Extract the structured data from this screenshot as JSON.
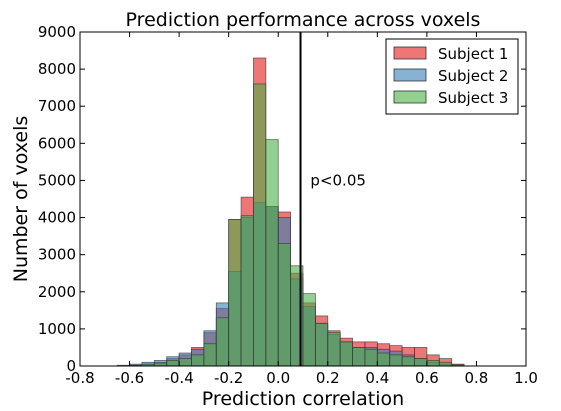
{
  "chart_data": {
    "type": "histogram",
    "title": "Prediction performance across voxels",
    "xlabel": "Prediction correlation",
    "ylabel": "Number of voxels",
    "xlim": [
      -0.8,
      1.0
    ],
    "ylim": [
      0,
      9000
    ],
    "xticks": [
      "-0.8",
      "-0.6",
      "-0.4",
      "-0.2",
      "0.0",
      "0.2",
      "0.4",
      "0.6",
      "0.8",
      "1.0"
    ],
    "xtick_values": [
      -0.8,
      -0.6,
      -0.4,
      -0.2,
      0.0,
      0.2,
      0.4,
      0.6,
      0.8,
      1.0
    ],
    "yticks": [
      "0",
      "1000",
      "2000",
      "3000",
      "4000",
      "5000",
      "6000",
      "7000",
      "8000",
      "9000"
    ],
    "ytick_values": [
      0,
      1000,
      2000,
      3000,
      4000,
      5000,
      6000,
      7000,
      8000,
      9000
    ],
    "grid": false,
    "legend_position": "top-right",
    "series": [
      {
        "name": "Subject 1",
        "color": "#e41a1c",
        "edges": [
          -0.6,
          -0.55,
          -0.5,
          -0.45,
          -0.4,
          -0.35,
          -0.3,
          -0.25,
          -0.2,
          -0.15,
          -0.1,
          -0.05,
          0.0,
          0.05,
          0.1,
          0.15,
          0.2,
          0.25,
          0.3,
          0.35,
          0.4,
          0.45,
          0.5,
          0.55,
          0.6,
          0.65,
          0.7,
          0.75
        ],
        "counts": [
          20,
          50,
          100,
          200,
          300,
          500,
          900,
          1550,
          3950,
          4550,
          8300,
          4300,
          4150,
          2500,
          1700,
          1350,
          950,
          750,
          650,
          650,
          600,
          550,
          500,
          500,
          300,
          200,
          50
        ]
      },
      {
        "name": "Subject 2",
        "color": "#377eb8",
        "edges": [
          -0.65,
          -0.6,
          -0.55,
          -0.5,
          -0.45,
          -0.4,
          -0.35,
          -0.3,
          -0.25,
          -0.2,
          -0.15,
          -0.1,
          -0.05,
          0.0,
          0.05,
          0.1,
          0.15,
          0.2,
          0.25,
          0.3,
          0.35,
          0.4,
          0.45,
          0.5,
          0.55,
          0.6,
          0.65,
          0.7
        ],
        "counts": [
          20,
          50,
          100,
          150,
          250,
          350,
          450,
          950,
          1700,
          2550,
          4000,
          4400,
          4300,
          4000,
          2350,
          1600,
          1150,
          850,
          650,
          500,
          500,
          450,
          400,
          300,
          200,
          100,
          50
        ]
      },
      {
        "name": "Subject 3",
        "color": "#4daf4a",
        "edges": [
          -0.6,
          -0.55,
          -0.5,
          -0.45,
          -0.4,
          -0.35,
          -0.3,
          -0.25,
          -0.2,
          -0.15,
          -0.1,
          -0.05,
          0.0,
          0.05,
          0.1,
          0.15,
          0.2,
          0.25,
          0.3,
          0.35,
          0.4,
          0.45,
          0.5,
          0.55,
          0.6,
          0.65,
          0.7,
          0.75
        ],
        "counts": [
          20,
          50,
          80,
          150,
          200,
          300,
          600,
          1300,
          3950,
          4050,
          7600,
          6100,
          3300,
          2700,
          1950,
          1150,
          900,
          650,
          500,
          450,
          350,
          300,
          250,
          200,
          150,
          100,
          30
        ]
      }
    ],
    "vline": {
      "x": 0.09,
      "color": "#000000"
    },
    "annotations": [
      {
        "text": "p<0.05",
        "x": 0.13,
        "y": 5000
      }
    ]
  }
}
